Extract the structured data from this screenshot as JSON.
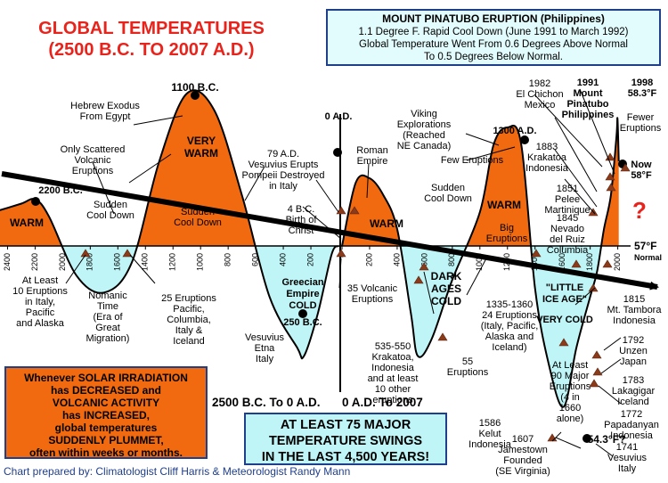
{
  "title": {
    "line1": "GLOBAL TEMPERATURES",
    "line2": "(2500 B.C. TO 2007 A.D.)"
  },
  "pinatubo_box": {
    "heading": "MOUNT PINATUBO ERUPTION (Philippines)",
    "line1": "1.1 Degree F. Rapid Cool Down (June 1991 to March 1992)",
    "line2": "Global Temperature Went From 0.6 Degrees Above Normal",
    "line3": "To 0.5 Degrees Below Normal."
  },
  "warning_box": [
    "Whenever SOLAR IRRADIATION",
    "has DECREASED and",
    "VOLCANIC ACTIVITY",
    "has INCREASED,",
    "global temperatures",
    "SUDDENLY PLUMMET,",
    "often within weeks or months."
  ],
  "swings_box": [
    "AT LEAST 75 MAJOR",
    "TEMPERATURE SWINGS",
    "IN THE LAST 4,500 YEARS!"
  ],
  "period_labels": {
    "bc": "2500 B.C. To 0 A.D.",
    "ad": "0 A.D. To 2007"
  },
  "credit": "Chart prepared by: Climatologist Cliff Harris & Meteorologist Randy Mann",
  "colors": {
    "warm": "#f26a10",
    "cold": "#bff5f6",
    "title": "#e8231b",
    "box_border": "#1f3e8c",
    "trend_arrow": "#000000"
  },
  "chart_data": {
    "type": "area",
    "ylabel_normal": "Normal",
    "normal_temp_label": "57°F",
    "x_ticks_bc": [
      "2400",
      "2200",
      "2000",
      "1800",
      "1600",
      "1400",
      "1200",
      "1000",
      "800",
      "600",
      "400",
      "200"
    ],
    "x_ticks_ad": [
      "0",
      "200",
      "400",
      "600",
      "800",
      "1000",
      "1200",
      "1400",
      "1600",
      "1800",
      "2000"
    ],
    "series": [
      {
        "segment": "B.C.",
        "x": [
          2500,
          2300,
          2200,
          2100,
          1900,
          1700,
          1500,
          1300,
          1100,
          900,
          700,
          500,
          300,
          250,
          150,
          50,
          0
        ],
        "y_relative": [
          0.4,
          0.5,
          0.55,
          0.35,
          -0.35,
          -0.55,
          -0.2,
          1.0,
          1.8,
          1.6,
          0.6,
          -0.6,
          -1.2,
          -1.3,
          -0.8,
          -0.1,
          0.0
        ]
      },
      {
        "segment": "A.D.",
        "x": [
          0,
          100,
          200,
          300,
          400,
          500,
          550,
          650,
          800,
          1000,
          1100,
          1200,
          1300,
          1400,
          1500,
          1607,
          1700,
          1800,
          1850,
          1900,
          1950,
          1991,
          1998,
          2007
        ],
        "y_relative": [
          0.0,
          0.75,
          0.8,
          0.6,
          0.2,
          -0.8,
          -1.3,
          -1.1,
          -0.4,
          0.4,
          1.2,
          1.4,
          1.2,
          -0.5,
          -1.4,
          -1.9,
          -1.2,
          -0.6,
          -0.3,
          0.2,
          0.6,
          1.3,
          1.5,
          1.0
        ]
      }
    ],
    "peaks": [
      {
        "label": "2200 B.C."
      },
      {
        "label": "1100 B.C."
      },
      {
        "label": "0 A.D."
      },
      {
        "label": "1300 A.D."
      },
      {
        "label": "1991"
      },
      {
        "label": "Mount"
      },
      {
        "label": "Pinatubo"
      },
      {
        "label": "Philippines"
      },
      {
        "label": "1998"
      },
      {
        "label": "58.3°F"
      },
      {
        "label": "Now"
      },
      {
        "label": "58°F"
      },
      {
        "label": "250 B.C."
      },
      {
        "label": "54.3°F?"
      }
    ],
    "region_labels": [
      "WARM",
      "VERY",
      "WARM",
      "WARM",
      "WARM",
      "Greecian",
      "Empire",
      "COLD",
      "DARK",
      "AGES",
      "COLD",
      "\"LITTLE",
      "ICE AGE\"",
      "VERY COLD",
      "?"
    ],
    "annotations": [
      "Hebrew Exodus",
      "From Egypt",
      "Only Scattered",
      "Volcanic",
      "Eruptions",
      "Sudden",
      "Cool Down",
      "Sudden",
      "Cool Down",
      "79 A.D.",
      "Vesuvius Erupts",
      "Pompeii Destroyed",
      "in Italy",
      "4 B.C.",
      "Birth of",
      "Christ",
      "Roman",
      "Empire",
      "Viking",
      "Explorations",
      "(Reached",
      "NE Canada)",
      "Few Eruptions",
      "Sudden",
      "Cool Down",
      "Big",
      "Eruptions",
      "1982",
      "El Chichon",
      "Mexico",
      "1883",
      "Krakatoa",
      "Indonesia",
      "1851",
      "Pelee",
      "Martinique",
      "1845",
      "Nevado",
      "del Ruiz",
      "Columbia",
      "Fewer",
      "Eruptions",
      "At Least",
      "10 Eruptions",
      "in Italy,",
      "Pacific",
      "and Alaska",
      "Nomanic",
      "Time",
      "(Era of",
      "Great",
      "Migration)",
      "25 Eruptions",
      "Pacific,",
      "Columbia,",
      "Italy &",
      "Iceland",
      "Vesuvius",
      "Etna",
      "Italy",
      "35 Volcanic",
      "Eruptions",
      "535-550",
      "Krakatoa,",
      "Indonesia",
      "and at least",
      "10 other",
      "eruptions",
      "55",
      "Eruptions",
      "1335-1360",
      "24 Eruptions",
      "(Italy, Pacific,",
      "Alaska and",
      "Iceland)",
      "At Least",
      "90 Major",
      "Eruptions",
      "(4 in",
      "1660",
      "alone)",
      "1815",
      "Mt. Tambora",
      "Indonesia",
      "1792",
      "Unzen",
      "Japan",
      "1783",
      "Lakagigar",
      "Iceland",
      "1772",
      "Papadanyan",
      "Indonesia",
      "1586",
      "Kelut",
      "Indonesia",
      "1607",
      "Jamestown",
      "Founded",
      "(SE Virginia)",
      "1741",
      "Vesuvius",
      "Italy"
    ]
  }
}
